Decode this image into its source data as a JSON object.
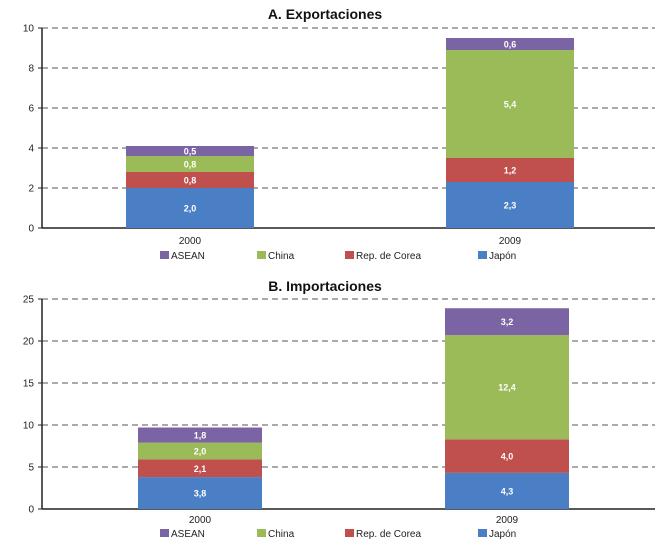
{
  "chart_data": [
    {
      "type": "bar",
      "stacked": true,
      "title": "A. Exportaciones",
      "xlabel": "",
      "ylabel": "",
      "categories": [
        "2000",
        "2009"
      ],
      "ylim": [
        0,
        10
      ],
      "yticks": [
        "0",
        "2",
        "4",
        "6",
        "8",
        "10"
      ],
      "grid": true,
      "legend_position": "bottom",
      "legend_order": [
        "ASEAN",
        "China",
        "Rep. de Corea",
        "Japón"
      ],
      "series": [
        {
          "name": "Japón",
          "color": "#4a7fc6",
          "values": [
            2.0,
            2.3
          ],
          "labels": [
            "2,0",
            "2,3"
          ]
        },
        {
          "name": "Rep. de Corea",
          "color": "#c0504d",
          "values": [
            0.8,
            1.2
          ],
          "labels": [
            "0,8",
            "1,2"
          ]
        },
        {
          "name": "China",
          "color": "#9bbb59",
          "values": [
            0.8,
            5.4
          ],
          "labels": [
            "0,8",
            "5,4"
          ]
        },
        {
          "name": "ASEAN",
          "color": "#7b64a3",
          "values": [
            0.5,
            0.6
          ],
          "labels": [
            "0,5",
            "0,6"
          ]
        }
      ]
    },
    {
      "type": "bar",
      "stacked": true,
      "title": "B. Importaciones",
      "xlabel": "",
      "ylabel": "",
      "categories": [
        "2000",
        "2009"
      ],
      "ylim": [
        0,
        25
      ],
      "yticks": [
        "0",
        "5",
        "10",
        "15",
        "20",
        "25"
      ],
      "grid": true,
      "legend_position": "bottom",
      "legend_order": [
        "ASEAN",
        "China",
        "Rep. de Corea",
        "Japón"
      ],
      "series": [
        {
          "name": "Japón",
          "color": "#4a7fc6",
          "values": [
            3.8,
            4.3
          ],
          "labels": [
            "3,8",
            "4,3"
          ]
        },
        {
          "name": "Rep. de Corea",
          "color": "#c0504d",
          "values": [
            2.1,
            4.0
          ],
          "labels": [
            "2,1",
            "4,0"
          ]
        },
        {
          "name": "China",
          "color": "#9bbb59",
          "values": [
            2.0,
            12.4
          ],
          "labels": [
            "2,0",
            "12,4"
          ]
        },
        {
          "name": "ASEAN",
          "color": "#7b64a3",
          "values": [
            1.8,
            3.2
          ],
          "labels": [
            "1,8",
            "3,2"
          ]
        }
      ]
    }
  ]
}
